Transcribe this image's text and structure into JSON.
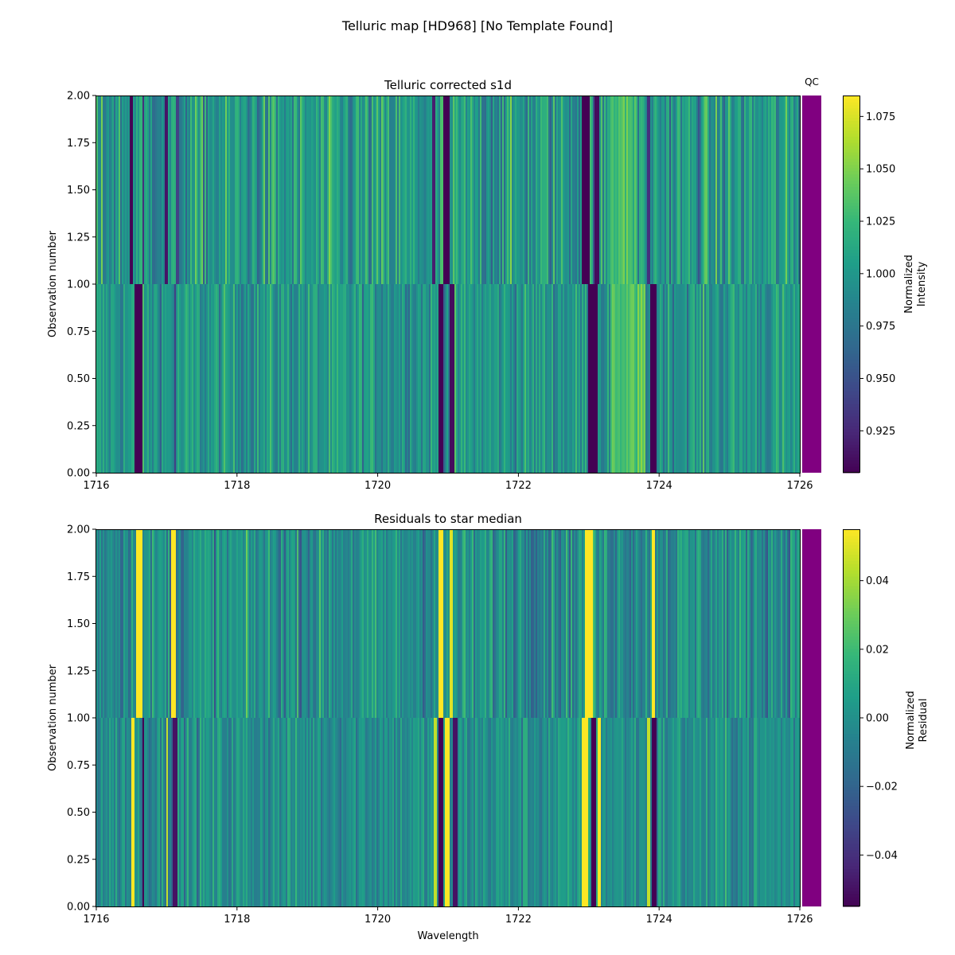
{
  "figure": {
    "title": "Telluric map [HD968] [No Template Found]"
  },
  "qc": {
    "label": "QC",
    "color": "#800080"
  },
  "chart_data": [
    {
      "type": "heatmap",
      "title": "Telluric corrected s1d",
      "xlabel": "",
      "ylabel": "Observation number",
      "xlim": [
        1716,
        1726
      ],
      "ylim": [
        0,
        2
      ],
      "xticks": [
        "1716",
        "1718",
        "1720",
        "1722",
        "1724",
        "1726"
      ],
      "yticks": [
        "0.00",
        "0.25",
        "0.50",
        "0.75",
        "1.00",
        "1.25",
        "1.50",
        "1.75",
        "2.00"
      ],
      "rows": [
        {
          "observation": 0,
          "y_range": [
            0,
            1
          ],
          "baseline": 1.0,
          "noise": 0.022
        },
        {
          "observation": 1,
          "y_range": [
            1,
            2
          ],
          "baseline": 1.0,
          "noise": 0.03
        }
      ],
      "absorption_features": [
        {
          "observation": 0,
          "wavelength": 1716.6,
          "width": 0.1,
          "value": 0.905
        },
        {
          "observation": 0,
          "wavelength": 1717.12,
          "width": 0.04,
          "value": 0.94
        },
        {
          "observation": 0,
          "wavelength": 1720.9,
          "width": 0.08,
          "value": 0.905
        },
        {
          "observation": 0,
          "wavelength": 1721.05,
          "width": 0.06,
          "value": 0.91
        },
        {
          "observation": 0,
          "wavelength": 1723.05,
          "width": 0.14,
          "value": 0.905
        },
        {
          "observation": 0,
          "wavelength": 1723.92,
          "width": 0.08,
          "value": 0.905
        },
        {
          "observation": 1,
          "wavelength": 1716.5,
          "width": 0.06,
          "value": 0.905
        },
        {
          "observation": 1,
          "wavelength": 1716.67,
          "width": 0.04,
          "value": 0.93
        },
        {
          "observation": 1,
          "wavelength": 1717.0,
          "width": 0.04,
          "value": 0.915
        },
        {
          "observation": 1,
          "wavelength": 1717.15,
          "width": 0.06,
          "value": 0.94
        },
        {
          "observation": 1,
          "wavelength": 1720.8,
          "width": 0.05,
          "value": 0.92
        },
        {
          "observation": 1,
          "wavelength": 1720.98,
          "width": 0.08,
          "value": 0.905
        },
        {
          "observation": 1,
          "wavelength": 1722.95,
          "width": 0.12,
          "value": 0.905
        },
        {
          "observation": 1,
          "wavelength": 1723.12,
          "width": 0.06,
          "value": 0.91
        },
        {
          "observation": 1,
          "wavelength": 1723.85,
          "width": 0.06,
          "value": 0.93
        }
      ],
      "bright_regions": [
        {
          "observation": 0,
          "range": [
            1723.3,
            1723.8
          ],
          "value": 1.035
        },
        {
          "observation": 1,
          "range": [
            1723.3,
            1723.7
          ],
          "value": 1.03
        }
      ],
      "colorbar": {
        "label_lines": [
          "Normalized",
          "Intensity"
        ],
        "range": [
          0.905,
          1.085
        ],
        "ticks": [
          {
            "value": 0.925,
            "label": "0.925"
          },
          {
            "value": 0.95,
            "label": "0.950"
          },
          {
            "value": 0.975,
            "label": "0.975"
          },
          {
            "value": 1.0,
            "label": "1.000"
          },
          {
            "value": 1.025,
            "label": "1.025"
          },
          {
            "value": 1.05,
            "label": "1.050"
          },
          {
            "value": 1.075,
            "label": "1.075"
          }
        ]
      }
    },
    {
      "type": "heatmap",
      "title": "Residuals to star median",
      "xlabel": "Wavelength",
      "ylabel": "Observation number",
      "xlim": [
        1716,
        1726
      ],
      "ylim": [
        0,
        2
      ],
      "xticks": [
        "1716",
        "1718",
        "1720",
        "1722",
        "1724",
        "1726"
      ],
      "yticks": [
        "0.00",
        "0.25",
        "0.50",
        "0.75",
        "1.00",
        "1.25",
        "1.50",
        "1.75",
        "2.00"
      ],
      "rows": [
        {
          "observation": 0,
          "y_range": [
            0,
            1
          ],
          "baseline": 0.0,
          "noise": 0.012
        },
        {
          "observation": 1,
          "y_range": [
            1,
            2
          ],
          "baseline": 0.0,
          "noise": 0.015
        }
      ],
      "features": [
        {
          "observation": 0,
          "wavelength": 1716.52,
          "width": 0.06,
          "value": 0.055
        },
        {
          "observation": 0,
          "wavelength": 1716.67,
          "width": 0.04,
          "value": -0.055
        },
        {
          "observation": 0,
          "wavelength": 1717.0,
          "width": 0.03,
          "value": 0.045
        },
        {
          "observation": 0,
          "wavelength": 1717.12,
          "width": 0.05,
          "value": -0.05
        },
        {
          "observation": 0,
          "wavelength": 1720.82,
          "width": 0.05,
          "value": 0.045
        },
        {
          "observation": 0,
          "wavelength": 1720.9,
          "width": 0.06,
          "value": -0.055
        },
        {
          "observation": 0,
          "wavelength": 1720.99,
          "width": 0.07,
          "value": 0.055
        },
        {
          "observation": 0,
          "wavelength": 1721.1,
          "width": 0.05,
          "value": -0.05
        },
        {
          "observation": 0,
          "wavelength": 1722.95,
          "width": 0.08,
          "value": 0.055
        },
        {
          "observation": 0,
          "wavelength": 1723.07,
          "width": 0.06,
          "value": -0.055
        },
        {
          "observation": 0,
          "wavelength": 1723.15,
          "width": 0.05,
          "value": 0.055
        },
        {
          "observation": 0,
          "wavelength": 1723.85,
          "width": 0.05,
          "value": 0.045
        },
        {
          "observation": 0,
          "wavelength": 1723.93,
          "width": 0.06,
          "value": -0.055
        },
        {
          "observation": 1,
          "wavelength": 1716.6,
          "width": 0.09,
          "value": 0.055
        },
        {
          "observation": 1,
          "wavelength": 1717.1,
          "width": 0.06,
          "value": 0.055
        },
        {
          "observation": 1,
          "wavelength": 1720.9,
          "width": 0.07,
          "value": 0.055
        },
        {
          "observation": 1,
          "wavelength": 1721.05,
          "width": 0.05,
          "value": 0.05
        },
        {
          "observation": 1,
          "wavelength": 1723.0,
          "width": 0.1,
          "value": 0.055
        },
        {
          "observation": 1,
          "wavelength": 1723.92,
          "width": 0.06,
          "value": 0.055
        }
      ],
      "colorbar": {
        "label_lines": [
          "Normalized",
          "Residual"
        ],
        "range": [
          -0.055,
          0.055
        ],
        "ticks": [
          {
            "value": -0.04,
            "label": "−0.04"
          },
          {
            "value": -0.02,
            "label": "−0.02"
          },
          {
            "value": 0.0,
            "label": "0.00"
          },
          {
            "value": 0.02,
            "label": "0.02"
          },
          {
            "value": 0.04,
            "label": "0.04"
          }
        ]
      }
    }
  ]
}
